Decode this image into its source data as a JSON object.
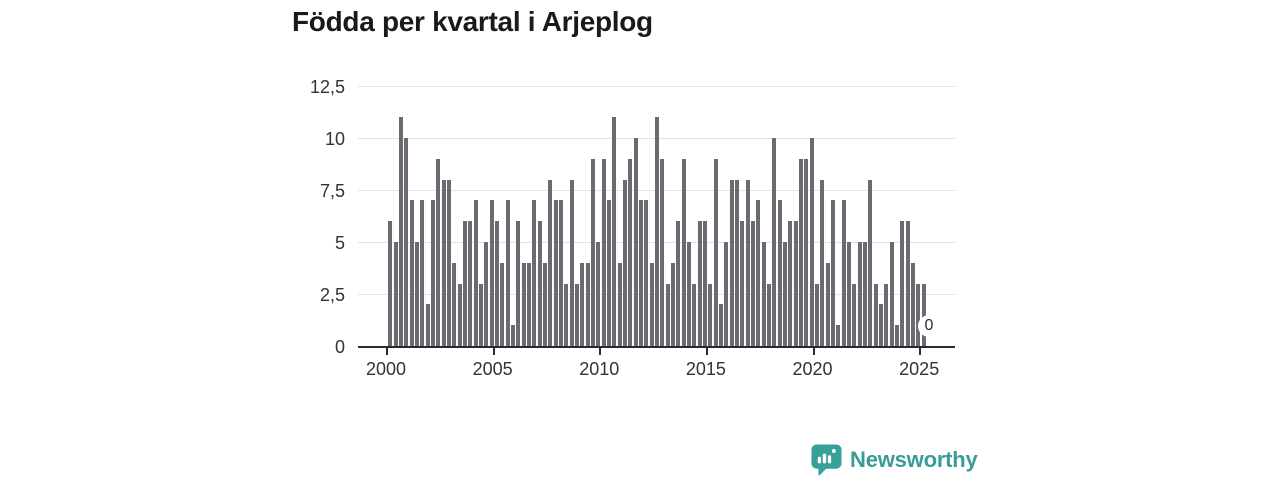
{
  "header": {
    "title": "Födda per kvartal i Arjeplog"
  },
  "chart_data": {
    "type": "bar",
    "title": "Födda per kvartal i Arjeplog",
    "x_start": "2000-Q1",
    "x_end": "2025-Q2",
    "frequency": "quarterly",
    "values": [
      6,
      5,
      11,
      10,
      7,
      5,
      7,
      2,
      7,
      9,
      8,
      8,
      4,
      3,
      6,
      6,
      7,
      3,
      5,
      7,
      6,
      4,
      7,
      1,
      6,
      4,
      4,
      7,
      6,
      4,
      8,
      7,
      7,
      3,
      8,
      3,
      4,
      4,
      9,
      5,
      9,
      7,
      11,
      4,
      8,
      9,
      10,
      7,
      7,
      4,
      11,
      9,
      3,
      4,
      6,
      9,
      5,
      3,
      6,
      6,
      3,
      9,
      2,
      5,
      8,
      8,
      6,
      8,
      6,
      7,
      5,
      3,
      10,
      7,
      5,
      6,
      6,
      9,
      9,
      10,
      3,
      8,
      4,
      7,
      1,
      7,
      5,
      3,
      5,
      5,
      8,
      3,
      2,
      3,
      5,
      1,
      6,
      6,
      4,
      3,
      3,
      0
    ],
    "ylim": [
      0,
      12.5
    ],
    "y_ticks": [
      {
        "value": 0,
        "label": "0"
      },
      {
        "value": 2.5,
        "label": "2,5"
      },
      {
        "value": 5,
        "label": "5"
      },
      {
        "value": 7.5,
        "label": "7,5"
      },
      {
        "value": 10,
        "label": "10"
      },
      {
        "value": 12.5,
        "label": "12,5"
      }
    ],
    "x_ticks": [
      {
        "label": "2000",
        "quarter_index": 0
      },
      {
        "label": "2005",
        "quarter_index": 20
      },
      {
        "label": "2010",
        "quarter_index": 40
      },
      {
        "label": "2015",
        "quarter_index": 60
      },
      {
        "label": "2020",
        "quarter_index": 80
      },
      {
        "label": "2025",
        "quarter_index": 100
      }
    ],
    "grid": "horizontal",
    "legend": "none",
    "annotation_label": "0",
    "bar_color": "#6a6a70"
  },
  "footer": {
    "brand": "Newsworthy",
    "brand_color": "#389d96"
  }
}
